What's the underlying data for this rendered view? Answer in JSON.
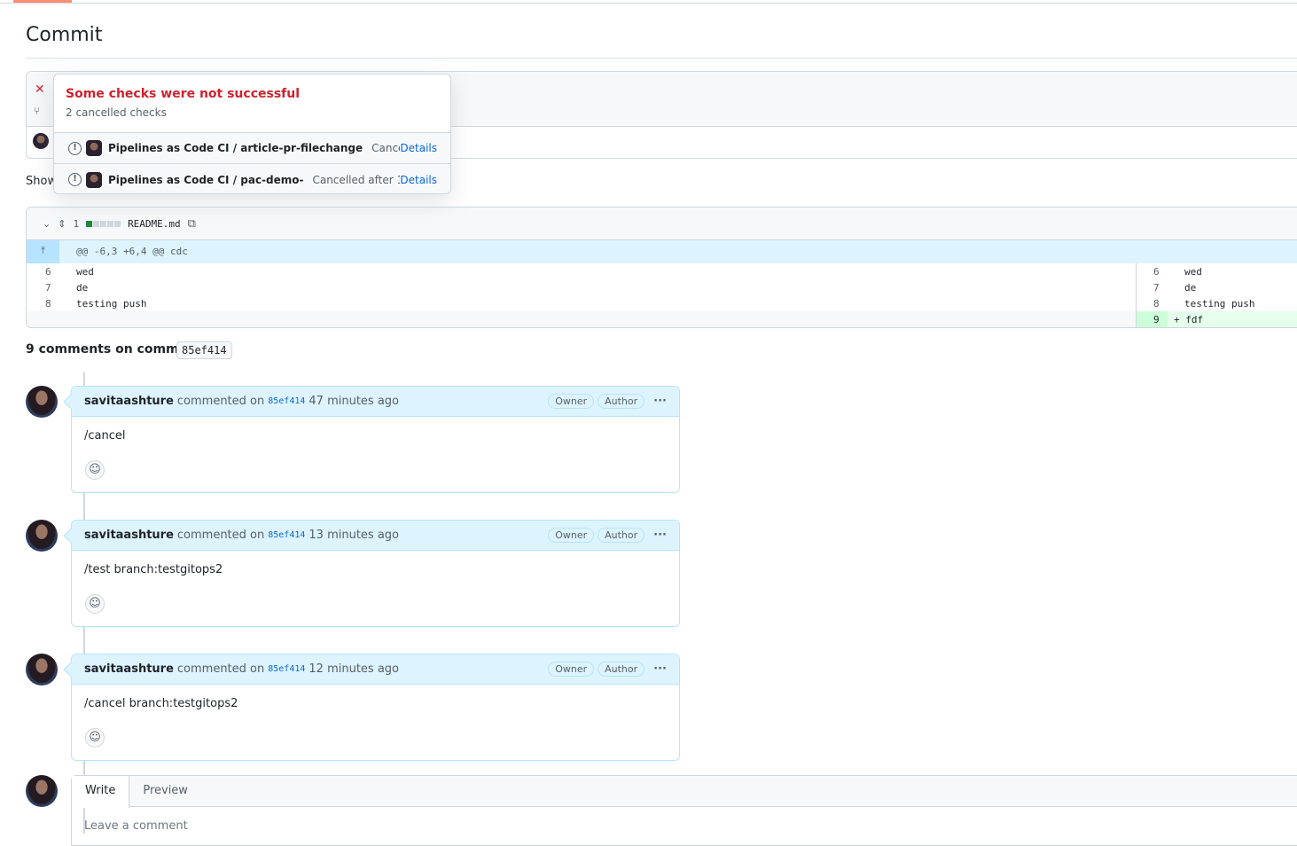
{
  "page": {
    "title": "Commit"
  },
  "commit": {
    "show_text": "Show"
  },
  "checks_popover": {
    "title": "Some checks were not successful",
    "subtitle": "2 cancelled checks",
    "checks": [
      {
        "name": "Pipelines as Code CI / article-pr-filechange",
        "status": "Cancell...",
        "details": "Details"
      },
      {
        "name": "Pipelines as Code CI / pac-demo-",
        "status": "Cancelled after 1...",
        "details": "Details"
      }
    ]
  },
  "diff": {
    "changes": "1",
    "filename": "README.md",
    "hunk": "@@ -6,3 +6,4 @@ cdc",
    "left": [
      {
        "n": "6",
        "t": "wed"
      },
      {
        "n": "7",
        "t": "de"
      },
      {
        "n": "8",
        "t": "testing push"
      }
    ],
    "right": [
      {
        "n": "6",
        "t": "wed"
      },
      {
        "n": "7",
        "t": "de"
      },
      {
        "n": "8",
        "t": "testing push"
      },
      {
        "n": "9",
        "t": "+ fdf"
      }
    ]
  },
  "comments_header": {
    "label": "9 comments on commit",
    "sha": "85ef414"
  },
  "comments": [
    {
      "user": "savitaashture",
      "action": "commented on",
      "sha": "85ef414",
      "time": "47 minutes ago",
      "badges": [
        "Owner",
        "Author"
      ],
      "body": "/cancel"
    },
    {
      "user": "savitaashture",
      "action": "commented on",
      "sha": "85ef414",
      "time": "13 minutes ago",
      "badges": [
        "Owner",
        "Author"
      ],
      "body": "/test branch:testgitops2"
    },
    {
      "user": "savitaashture",
      "action": "commented on",
      "sha": "85ef414",
      "time": "12 minutes ago",
      "badges": [
        "Owner",
        "Author"
      ],
      "body": "/cancel branch:testgitops2"
    }
  ],
  "composer": {
    "write": "Write",
    "preview": "Preview",
    "placeholder": "Leave a comment"
  }
}
